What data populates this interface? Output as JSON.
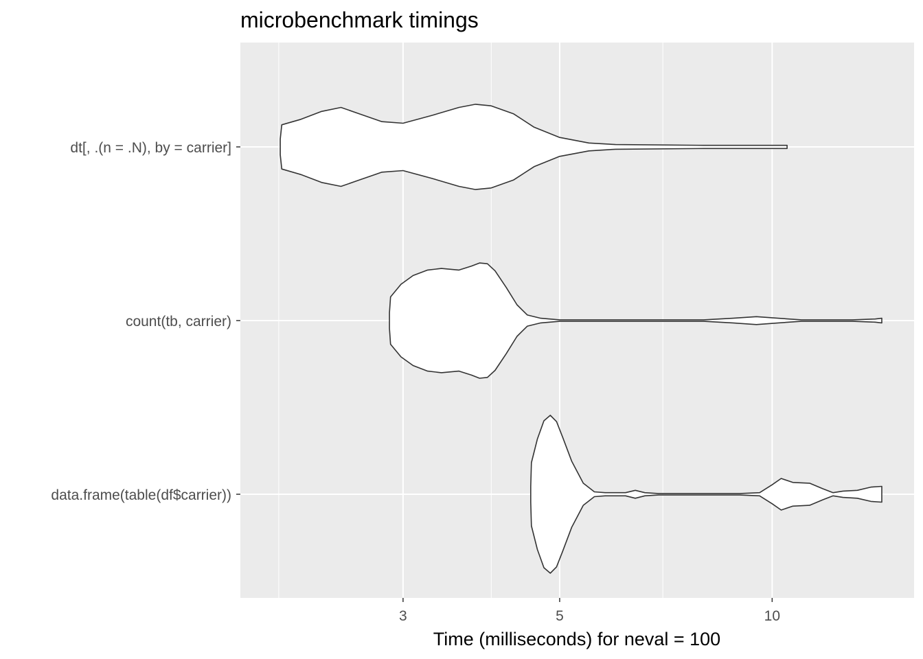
{
  "chart_data": {
    "type": "violin",
    "title": "microbenchmark timings",
    "xlabel": "Time (milliseconds) for neval = 100",
    "ylabel": "",
    "x_scale": "log10",
    "xlim": [
      1.9,
      14.3
    ],
    "x_ticks": [
      {
        "value": 3,
        "label": "3"
      },
      {
        "value": 5,
        "label": "5"
      },
      {
        "value": 10,
        "label": "10"
      }
    ],
    "x_minor_ticks": [
      2,
      4,
      7
    ],
    "categories": [
      "dt[, .(n = .N), by = carrier]",
      "count(tb, carrier)",
      "data.frame(table(df$carrier))"
    ],
    "grid": true,
    "legend": "none",
    "colors": {
      "panel": "#ebebeb",
      "grid": "#ffffff",
      "outline": "#333333",
      "fill": "#ffffff",
      "tick_text": "#4d4d4d"
    },
    "series": [
      {
        "category": "dt[, .(n = .N), by = carrier]",
        "min": 2.01,
        "max": 10.5,
        "density": [
          [
            2.01,
            0.1
          ],
          [
            2.02,
            0.28
          ],
          [
            2.15,
            0.35
          ],
          [
            2.3,
            0.45
          ],
          [
            2.45,
            0.5
          ],
          [
            2.6,
            0.42
          ],
          [
            2.8,
            0.32
          ],
          [
            3.0,
            0.3
          ],
          [
            3.3,
            0.4
          ],
          [
            3.6,
            0.5
          ],
          [
            3.8,
            0.54
          ],
          [
            4.0,
            0.52
          ],
          [
            4.3,
            0.42
          ],
          [
            4.6,
            0.25
          ],
          [
            5.0,
            0.12
          ],
          [
            5.5,
            0.05
          ],
          [
            6.0,
            0.03
          ],
          [
            8.0,
            0.02
          ],
          [
            10.5,
            0.02
          ]
        ]
      },
      {
        "category": "count(tb, carrier)",
        "min": 2.87,
        "max": 14.3,
        "density": [
          [
            2.87,
            0.1
          ],
          [
            2.88,
            0.3
          ],
          [
            2.98,
            0.46
          ],
          [
            3.1,
            0.57
          ],
          [
            3.25,
            0.64
          ],
          [
            3.4,
            0.66
          ],
          [
            3.6,
            0.64
          ],
          [
            3.75,
            0.69
          ],
          [
            3.85,
            0.73
          ],
          [
            3.95,
            0.72
          ],
          [
            4.05,
            0.63
          ],
          [
            4.2,
            0.42
          ],
          [
            4.35,
            0.2
          ],
          [
            4.5,
            0.07
          ],
          [
            4.7,
            0.03
          ],
          [
            5.0,
            0.01
          ],
          [
            8.0,
            0.01
          ],
          [
            8.8,
            0.03
          ],
          [
            9.5,
            0.05
          ],
          [
            10.2,
            0.03
          ],
          [
            11.0,
            0.01
          ],
          [
            13.0,
            0.01
          ],
          [
            14.0,
            0.02
          ],
          [
            14.3,
            0.03
          ],
          [
            14.3,
            0.0
          ]
        ]
      },
      {
        "category": "data.frame(table(df$carrier))",
        "min": 4.55,
        "max": 14.3,
        "density": [
          [
            4.55,
            0.1
          ],
          [
            4.56,
            0.4
          ],
          [
            4.65,
            0.7
          ],
          [
            4.75,
            0.93
          ],
          [
            4.85,
            1.0
          ],
          [
            4.95,
            0.92
          ],
          [
            5.05,
            0.72
          ],
          [
            5.2,
            0.42
          ],
          [
            5.4,
            0.14
          ],
          [
            5.6,
            0.03
          ],
          [
            5.8,
            0.02
          ],
          [
            6.2,
            0.02
          ],
          [
            6.4,
            0.05
          ],
          [
            6.6,
            0.02
          ],
          [
            6.9,
            0.01
          ],
          [
            9.0,
            0.01
          ],
          [
            9.6,
            0.02
          ],
          [
            10.0,
            0.12
          ],
          [
            10.3,
            0.2
          ],
          [
            10.7,
            0.15
          ],
          [
            11.3,
            0.14
          ],
          [
            11.8,
            0.07
          ],
          [
            12.2,
            0.02
          ],
          [
            12.6,
            0.04
          ],
          [
            13.2,
            0.05
          ],
          [
            13.8,
            0.09
          ],
          [
            14.3,
            0.1
          ],
          [
            14.3,
            0.0
          ]
        ]
      }
    ]
  }
}
